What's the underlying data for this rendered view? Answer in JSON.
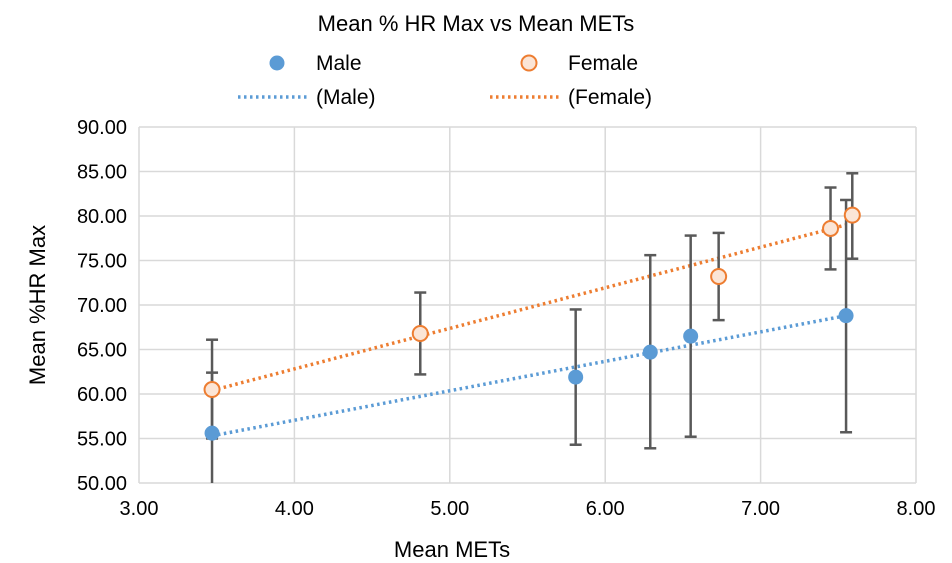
{
  "chart_data": {
    "type": "scatter",
    "title": "Mean % HR Max vs Mean METs",
    "xlabel": "Mean METs",
    "ylabel": "Mean %HR Max",
    "xlim": [
      3.0,
      8.0
    ],
    "ylim": [
      50.0,
      90.0
    ],
    "xticks": [
      "3.00",
      "4.00",
      "5.00",
      "6.00",
      "7.00",
      "8.00"
    ],
    "yticks": [
      "50.00",
      "55.00",
      "60.00",
      "65.00",
      "70.00",
      "75.00",
      "80.00",
      "85.00",
      "90.00"
    ],
    "grid": true,
    "legend_position": "top",
    "series": [
      {
        "name": "Male",
        "color": "#5b9bd5",
        "marker": "filled-circle",
        "points": [
          {
            "x": 3.47,
            "y": 55.6,
            "err_low": 49.5,
            "err_high": 62.4
          },
          {
            "x": 5.81,
            "y": 61.9,
            "err_low": 54.3,
            "err_high": 69.5
          },
          {
            "x": 6.29,
            "y": 64.7,
            "err_low": 53.9,
            "err_high": 75.6
          },
          {
            "x": 6.55,
            "y": 66.5,
            "err_low": 55.2,
            "err_high": 77.8
          },
          {
            "x": 7.55,
            "y": 68.8,
            "err_low": 55.7,
            "err_high": 81.8
          }
        ]
      },
      {
        "name": "Female",
        "color": "#ed7d31",
        "marker": "hollow-circle",
        "points": [
          {
            "x": 3.47,
            "y": 60.5,
            "err_low": 55.0,
            "err_high": 66.1
          },
          {
            "x": 4.81,
            "y": 66.8,
            "err_low": 62.2,
            "err_high": 71.4
          },
          {
            "x": 6.73,
            "y": 73.2,
            "err_low": 68.3,
            "err_high": 78.1
          },
          {
            "x": 7.45,
            "y": 78.6,
            "err_low": 74.0,
            "err_high": 83.2
          },
          {
            "x": 7.59,
            "y": 80.1,
            "err_low": 75.2,
            "err_high": 84.8
          }
        ]
      }
    ],
    "trendlines": [
      {
        "name": "(Male)",
        "series": "Male",
        "color": "#5b9bd5",
        "style": "dotted",
        "from": [
          3.47,
          55.3
        ],
        "to": [
          7.55,
          68.8
        ]
      },
      {
        "name": "(Female)",
        "series": "Female",
        "color": "#ed7d31",
        "style": "dotted",
        "from": [
          3.47,
          60.4
        ],
        "to": [
          7.55,
          79.0
        ]
      }
    ]
  }
}
